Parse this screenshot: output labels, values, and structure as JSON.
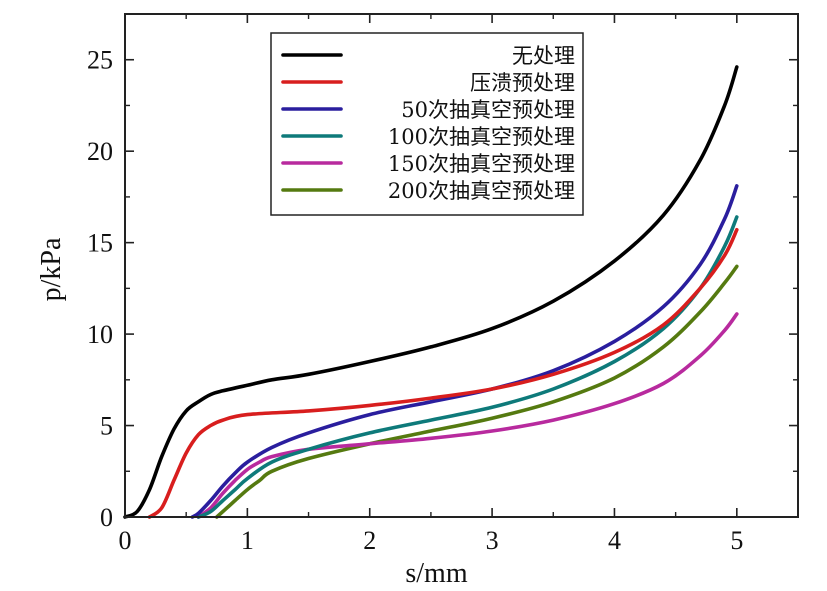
{
  "chart_data": {
    "type": "line",
    "xlabel": "s/mm",
    "ylabel": "p/kPa",
    "xlim": [
      0,
      5.5
    ],
    "ylim": [
      0,
      27.5
    ],
    "xticks": [
      0,
      1,
      2,
      3,
      4,
      5
    ],
    "yticks": [
      0,
      5,
      10,
      15,
      20,
      25
    ],
    "legend_position": "top-center",
    "grid": false,
    "series": [
      {
        "name": "无处理",
        "color": "#000000",
        "x": [
          0,
          0.1,
          0.2,
          0.3,
          0.4,
          0.5,
          0.6,
          0.7,
          0.8,
          1.0,
          1.2,
          1.5,
          2.0,
          2.5,
          3.0,
          3.5,
          4.0,
          4.4,
          4.7,
          4.9,
          5.0
        ],
        "y": [
          0,
          0.3,
          1.5,
          3.3,
          4.8,
          5.8,
          6.3,
          6.7,
          6.9,
          7.2,
          7.5,
          7.8,
          8.5,
          9.3,
          10.3,
          11.8,
          14.0,
          16.5,
          19.5,
          22.5,
          24.6
        ]
      },
      {
        "name": "压溃预处理",
        "color": "#d81e1e",
        "x": [
          0.2,
          0.3,
          0.4,
          0.5,
          0.6,
          0.7,
          0.8,
          1.0,
          1.5,
          2.0,
          2.5,
          3.0,
          3.5,
          4.0,
          4.4,
          4.7,
          4.9,
          5.0
        ],
        "y": [
          0,
          0.5,
          2.0,
          3.5,
          4.5,
          5.0,
          5.3,
          5.6,
          5.8,
          6.1,
          6.5,
          7.0,
          7.8,
          9.0,
          10.5,
          12.5,
          14.3,
          15.7
        ]
      },
      {
        "name": "50次抽真空预处理",
        "color": "#2a1e9e",
        "x": [
          0.55,
          0.6,
          0.7,
          0.8,
          0.9,
          1.0,
          1.2,
          1.5,
          2.0,
          2.5,
          3.0,
          3.5,
          4.0,
          4.4,
          4.7,
          4.9,
          5.0
        ],
        "y": [
          0,
          0.2,
          0.9,
          1.7,
          2.4,
          3.0,
          3.8,
          4.6,
          5.6,
          6.3,
          7.0,
          8.0,
          9.6,
          11.5,
          13.8,
          16.3,
          18.1
        ]
      },
      {
        "name": "100次抽真空预处理",
        "color": "#0e7a7a",
        "x": [
          0.6,
          0.7,
          0.8,
          0.9,
          1.0,
          1.2,
          1.5,
          2.0,
          2.5,
          3.0,
          3.5,
          4.0,
          4.4,
          4.7,
          4.9,
          5.0
        ],
        "y": [
          0,
          0.3,
          0.9,
          1.5,
          2.1,
          3.0,
          3.7,
          4.6,
          5.3,
          6.0,
          7.0,
          8.5,
          10.3,
          12.5,
          14.8,
          16.4
        ]
      },
      {
        "name": "150次抽真空预处理",
        "color": "#b82a9e",
        "x": [
          0.6,
          0.7,
          0.8,
          0.9,
          1.0,
          1.1,
          1.2,
          1.5,
          2.0,
          2.5,
          3.0,
          3.5,
          4.0,
          4.4,
          4.7,
          4.9,
          5.0
        ],
        "y": [
          0,
          0.5,
          1.3,
          2.0,
          2.6,
          3.0,
          3.3,
          3.7,
          4.0,
          4.3,
          4.7,
          5.3,
          6.2,
          7.3,
          8.8,
          10.2,
          11.1
        ]
      },
      {
        "name": "200次抽真空预处理",
        "color": "#557a10",
        "x": [
          0.75,
          0.8,
          0.9,
          1.0,
          1.1,
          1.2,
          1.5,
          2.0,
          2.5,
          3.0,
          3.5,
          4.0,
          4.4,
          4.7,
          4.9,
          5.0
        ],
        "y": [
          0,
          0.3,
          0.9,
          1.5,
          2.0,
          2.5,
          3.2,
          4.0,
          4.7,
          5.4,
          6.3,
          7.6,
          9.3,
          11.2,
          12.8,
          13.7
        ]
      }
    ]
  }
}
